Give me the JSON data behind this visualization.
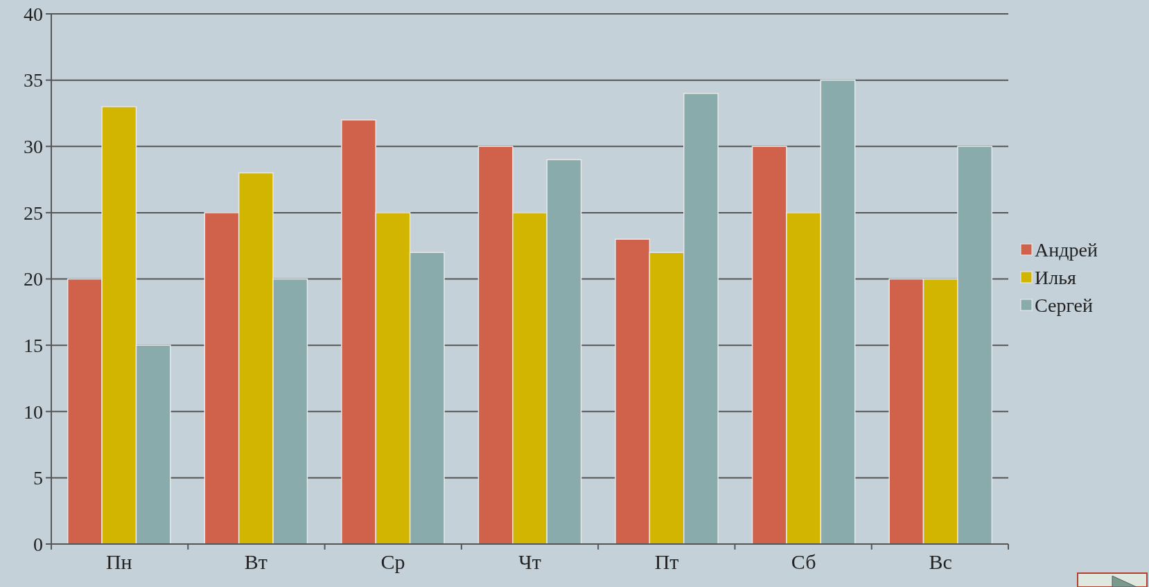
{
  "chart_data": {
    "type": "bar",
    "categories": [
      "Пн",
      "Вт",
      "Ср",
      "Чт",
      "Пт",
      "Сб",
      "Вс"
    ],
    "series": [
      {
        "name": "Андрей",
        "color": "#d0614a",
        "values": [
          20,
          25,
          32,
          30,
          23,
          30,
          20
        ]
      },
      {
        "name": "Илья",
        "color": "#d2b500",
        "values": [
          33,
          28,
          25,
          25,
          22,
          25,
          20
        ]
      },
      {
        "name": "Сергей",
        "color": "#8aabab",
        "values": [
          15,
          20,
          22,
          29,
          34,
          35,
          30
        ]
      }
    ],
    "ylim": [
      0,
      40
    ],
    "yticks": [
      0,
      5,
      10,
      15,
      20,
      25,
      30,
      35,
      40
    ],
    "grid": "y",
    "legend": "right"
  }
}
